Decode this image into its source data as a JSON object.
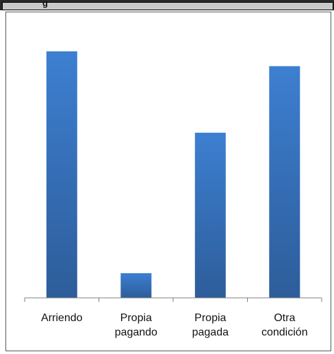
{
  "header": {
    "partial_text": "g"
  },
  "colors": {
    "bar_top": "#3d7fd1",
    "bar_bottom": "#2d5d9a",
    "axis": "#7f7f7f"
  },
  "chart_data": {
    "type": "bar",
    "categories": [
      [
        "Arriendo"
      ],
      [
        "Propia",
        "pagando"
      ],
      [
        "Propia",
        "pagada"
      ],
      [
        "Otra",
        "condición"
      ]
    ],
    "values": [
      100,
      10,
      67,
      94
    ],
    "ylim": [
      0,
      100
    ],
    "grid": false,
    "legend": "none"
  }
}
